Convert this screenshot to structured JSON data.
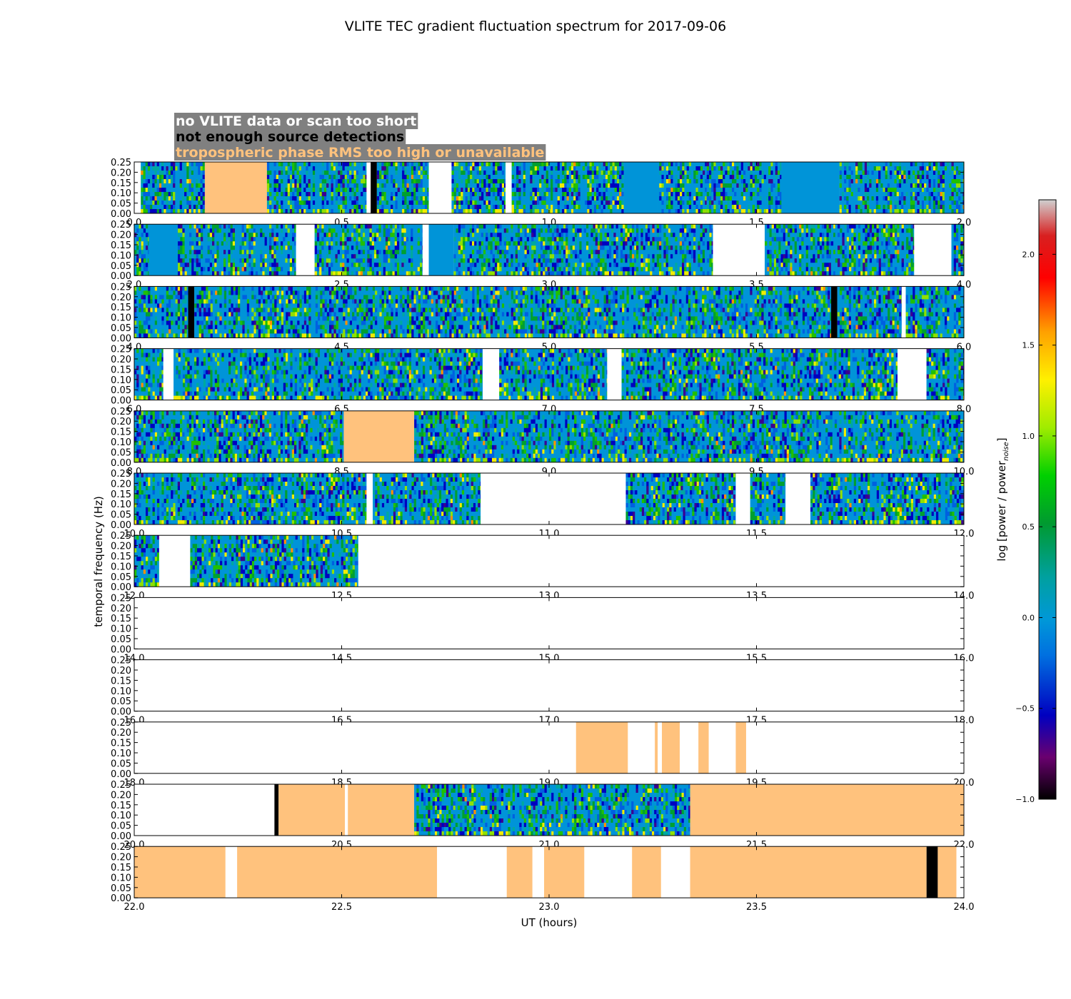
{
  "chart_data": {
    "type": "heatmap",
    "title": "VLITE TEC gradient fluctuation spectrum for 2017-09-06",
    "xlabel": "UT (hours)",
    "ylabel": "temporal frequency (Hz)",
    "ylim": [
      0,
      0.25
    ],
    "yticks": [
      "0.00",
      "0.05",
      "0.10",
      "0.15",
      "0.20",
      "0.25"
    ],
    "legend": {
      "placement": "top-left",
      "entries": [
        {
          "label": "no VLITE data or scan too short",
          "color": "#ffffff",
          "box": "#808080"
        },
        {
          "label": "not enough source detections",
          "color": "#000000",
          "box": "#808080"
        },
        {
          "label": "tropospheric phase RMS too high or unavailable",
          "color": "#ffc27d",
          "box": "#808080"
        }
      ]
    },
    "colorbar": {
      "label": "log [power / power",
      "label_sub": "noise",
      "label_end": "]",
      "range": [
        -1.0,
        2.3
      ],
      "ticks": [
        "−1.0",
        "−0.5",
        "0.0",
        "0.5",
        "1.0",
        "1.5",
        "2.0"
      ],
      "tick_values": [
        -1.0,
        -0.5,
        0.0,
        0.5,
        1.0,
        1.5,
        2.0
      ]
    },
    "colors": {
      "tropo": "#ffc27d",
      "nodet": "#000000",
      "nodata": "#ffffff",
      "baseline": "#0094d8"
    },
    "panels": [
      {
        "xrange": [
          0,
          2
        ],
        "xticks": [
          "0.0",
          "0.5",
          "1.0",
          "1.5",
          "2.0"
        ],
        "segments": [
          [
            0.0,
            0.016,
            "nodata"
          ],
          [
            0.016,
            0.17,
            "spec"
          ],
          [
            0.17,
            0.32,
            "tropo"
          ],
          [
            0.32,
            0.56,
            "spec"
          ],
          [
            0.56,
            0.57,
            "nodata"
          ],
          [
            0.57,
            0.585,
            "nodet"
          ],
          [
            0.585,
            0.71,
            "spec"
          ],
          [
            0.71,
            0.765,
            "nodata"
          ],
          [
            0.765,
            0.895,
            "spec"
          ],
          [
            0.895,
            0.91,
            "nodata"
          ],
          [
            0.91,
            1.18,
            "spec"
          ],
          [
            1.18,
            1.26,
            "base"
          ],
          [
            1.26,
            1.38,
            "spec"
          ],
          [
            1.38,
            1.56,
            "spec"
          ],
          [
            1.56,
            1.7,
            "base"
          ],
          [
            1.7,
            2.0,
            "spec"
          ]
        ]
      },
      {
        "xrange": [
          2,
          4
        ],
        "xticks": [
          "2.0",
          "2.5",
          "3.0",
          "3.5",
          "4.0"
        ],
        "segments": [
          [
            2.0,
            2.035,
            "spec"
          ],
          [
            2.035,
            2.105,
            "base"
          ],
          [
            2.105,
            2.39,
            "spec"
          ],
          [
            2.39,
            2.435,
            "nodata"
          ],
          [
            2.435,
            2.695,
            "spec"
          ],
          [
            2.695,
            2.71,
            "nodata"
          ],
          [
            2.71,
            2.77,
            "base"
          ],
          [
            2.77,
            3.21,
            "spec"
          ],
          [
            3.21,
            3.395,
            "spec"
          ],
          [
            3.395,
            3.52,
            "nodata"
          ],
          [
            3.52,
            3.69,
            "spec"
          ],
          [
            3.69,
            3.88,
            "spec"
          ],
          [
            3.88,
            3.97,
            "nodata"
          ],
          [
            3.97,
            4.0,
            "spec"
          ]
        ]
      },
      {
        "xrange": [
          4,
          6
        ],
        "xticks": [
          "4.0",
          "4.5",
          "5.0",
          "5.5",
          "6.0"
        ],
        "segments": [
          [
            4.0,
            4.13,
            "spec"
          ],
          [
            4.13,
            4.145,
            "nodet"
          ],
          [
            4.145,
            4.71,
            "spec"
          ],
          [
            4.71,
            4.95,
            "spec"
          ],
          [
            4.95,
            5.68,
            "spec"
          ],
          [
            5.68,
            5.695,
            "nodet"
          ],
          [
            5.695,
            5.85,
            "spec"
          ],
          [
            5.85,
            5.86,
            "nodata"
          ],
          [
            5.86,
            6.0,
            "spec"
          ]
        ]
      },
      {
        "xrange": [
          6,
          8
        ],
        "xticks": [
          "6.0",
          "6.5",
          "7.0",
          "7.5",
          "8.0"
        ],
        "segments": [
          [
            6.0,
            6.07,
            "spec"
          ],
          [
            6.07,
            6.095,
            "nodata"
          ],
          [
            6.095,
            6.84,
            "spec"
          ],
          [
            6.84,
            6.88,
            "nodata"
          ],
          [
            6.88,
            7.14,
            "spec"
          ],
          [
            7.14,
            7.175,
            "nodata"
          ],
          [
            7.175,
            7.84,
            "spec"
          ],
          [
            7.84,
            7.91,
            "nodata"
          ],
          [
            7.91,
            8.0,
            "spec"
          ]
        ]
      },
      {
        "xrange": [
          8,
          10
        ],
        "xticks": [
          "8.0",
          "8.5",
          "9.0",
          "9.5",
          "10.0"
        ],
        "segments": [
          [
            8.0,
            8.505,
            "spec"
          ],
          [
            8.505,
            8.675,
            "tropo"
          ],
          [
            8.675,
            10.0,
            "spec"
          ]
        ]
      },
      {
        "xrange": [
          10,
          12
        ],
        "xticks": [
          "10.0",
          "10.5",
          "11.0",
          "11.5",
          "12.0"
        ],
        "segments": [
          [
            10.0,
            10.56,
            "spec"
          ],
          [
            10.56,
            10.575,
            "nodata"
          ],
          [
            10.575,
            10.835,
            "spec"
          ],
          [
            10.835,
            11.185,
            "nodata"
          ],
          [
            11.185,
            11.45,
            "spec"
          ],
          [
            11.45,
            11.485,
            "nodata"
          ],
          [
            11.485,
            11.57,
            "spec"
          ],
          [
            11.57,
            11.63,
            "nodata"
          ],
          [
            11.63,
            12.0,
            "spec"
          ]
        ]
      },
      {
        "xrange": [
          12,
          14
        ],
        "xticks": [
          "12.0",
          "12.5",
          "13.0",
          "13.5",
          "14.0"
        ],
        "segments": [
          [
            12.0,
            12.06,
            "spec"
          ],
          [
            12.06,
            12.135,
            "nodata"
          ],
          [
            12.135,
            12.54,
            "spec"
          ],
          [
            12.54,
            14.0,
            "nodata"
          ]
        ]
      },
      {
        "xrange": [
          14,
          16
        ],
        "xticks": [
          "14.0",
          "14.5",
          "15.0",
          "15.5",
          "16.0"
        ],
        "segments": [
          [
            14.0,
            16.0,
            "nodata"
          ]
        ]
      },
      {
        "xrange": [
          16,
          18
        ],
        "xticks": [
          "16.0",
          "16.5",
          "17.0",
          "17.5",
          "18.0"
        ],
        "segments": [
          [
            16.0,
            18.0,
            "nodata"
          ]
        ]
      },
      {
        "xrange": [
          18,
          20
        ],
        "xticks": [
          "18.0",
          "18.5",
          "19.0",
          "19.5",
          "20.0"
        ],
        "segments": [
          [
            18.0,
            19.065,
            "nodata"
          ],
          [
            19.065,
            19.19,
            "tropo"
          ],
          [
            19.19,
            19.255,
            "nodata"
          ],
          [
            19.255,
            19.262,
            "tropo"
          ],
          [
            19.262,
            19.272,
            "nodata"
          ],
          [
            19.272,
            19.315,
            "tropo"
          ],
          [
            19.315,
            19.36,
            "nodata"
          ],
          [
            19.36,
            19.385,
            "tropo"
          ],
          [
            19.385,
            19.45,
            "nodata"
          ],
          [
            19.45,
            19.475,
            "tropo"
          ],
          [
            19.475,
            20.0,
            "nodata"
          ]
        ]
      },
      {
        "xrange": [
          20,
          22
        ],
        "xticks": [
          "20.0",
          "20.5",
          "21.0",
          "21.5",
          "22.0"
        ],
        "segments": [
          [
            20.0,
            20.338,
            "nodata"
          ],
          [
            20.338,
            20.348,
            "nodet"
          ],
          [
            20.348,
            20.508,
            "tropo"
          ],
          [
            20.508,
            20.515,
            "nodata"
          ],
          [
            20.515,
            20.675,
            "tropo"
          ],
          [
            20.675,
            21.34,
            "spec"
          ],
          [
            21.34,
            22.0,
            "tropo"
          ]
        ]
      },
      {
        "xrange": [
          22,
          24
        ],
        "xticks": [
          "22.0",
          "22.5",
          "23.0",
          "23.5",
          "24.0"
        ],
        "segments": [
          [
            22.0,
            22.22,
            "tropo"
          ],
          [
            22.22,
            22.248,
            "nodata"
          ],
          [
            22.248,
            22.73,
            "tropo"
          ],
          [
            22.73,
            22.898,
            "nodata"
          ],
          [
            22.898,
            22.96,
            "tropo"
          ],
          [
            22.96,
            22.988,
            "nodata"
          ],
          [
            22.988,
            23.085,
            "tropo"
          ],
          [
            23.085,
            23.2,
            "nodata"
          ],
          [
            23.2,
            23.27,
            "tropo"
          ],
          [
            23.27,
            23.34,
            "nodata"
          ],
          [
            23.34,
            23.91,
            "tropo"
          ],
          [
            23.91,
            23.937,
            "nodet"
          ],
          [
            23.937,
            23.982,
            "tropo"
          ],
          [
            23.982,
            24.0,
            "nodata"
          ]
        ]
      }
    ]
  }
}
